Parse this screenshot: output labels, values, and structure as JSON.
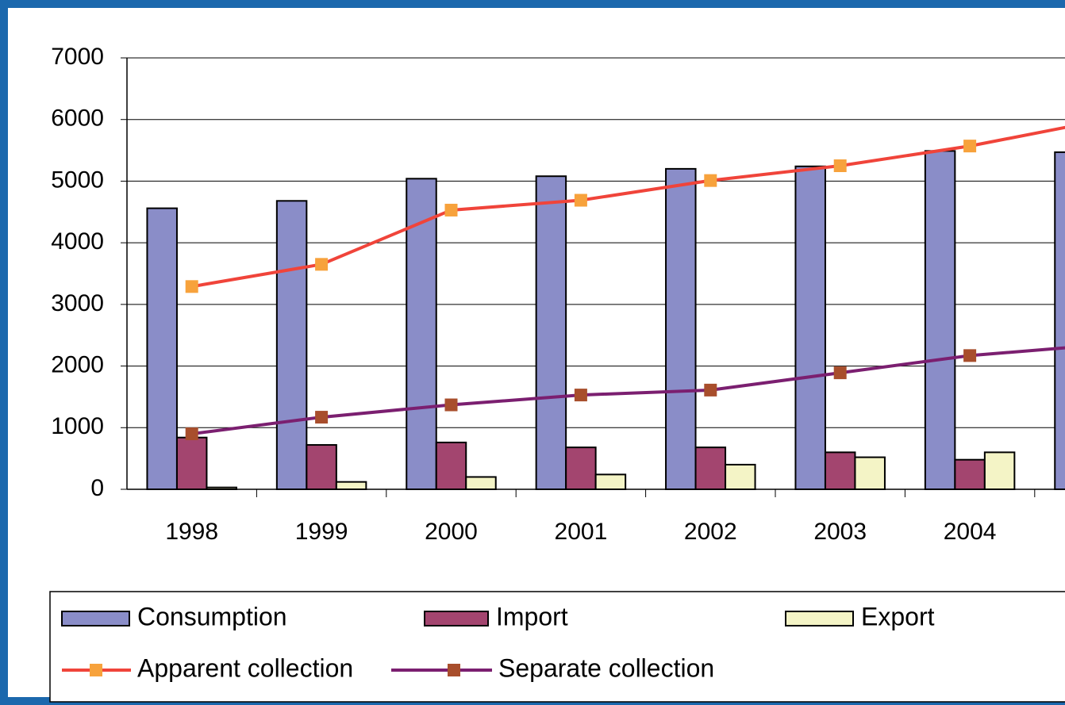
{
  "chart_data": {
    "type": "bar_line",
    "categories": [
      "1998",
      "1999",
      "2000",
      "2001",
      "2002",
      "2003",
      "2004",
      null
    ],
    "series": [
      {
        "name": "Consumption",
        "type": "bar",
        "color": "#8a8dc8",
        "values": [
          4560,
          4680,
          5040,
          5080,
          5200,
          5240,
          5490,
          5470
        ]
      },
      {
        "name": "Import",
        "type": "bar",
        "color": "#a3456f",
        "values": [
          840,
          720,
          760,
          680,
          680,
          600,
          480,
          null
        ]
      },
      {
        "name": "Export",
        "type": "bar",
        "color": "#f4f4c6",
        "values": [
          30,
          120,
          200,
          240,
          400,
          520,
          600,
          null
        ]
      },
      {
        "name": "Apparent collection",
        "type": "line",
        "color": "#f0443a",
        "marker_color": "#f7a23c",
        "values": [
          3290,
          3650,
          4530,
          4690,
          5010,
          5250,
          5570,
          5980
        ]
      },
      {
        "name": "Separate collection",
        "type": "line",
        "color": "#7b1f70",
        "marker_color": "#a84e2c",
        "values": [
          900,
          1170,
          1370,
          1530,
          1610,
          1890,
          2170,
          2340
        ]
      }
    ],
    "ylim": [
      0,
      7000
    ],
    "yticks": [
      0,
      1000,
      2000,
      3000,
      4000,
      5000,
      6000,
      7000
    ],
    "grid": true,
    "legend": "bottom"
  }
}
